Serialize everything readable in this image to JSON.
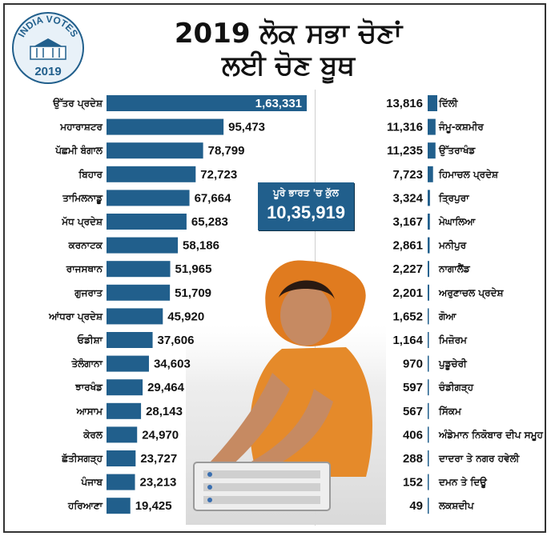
{
  "header": {
    "logo_text_top": "INDIA VOTES",
    "logo_year": "2019",
    "title_line1": "2019 ਲੋਕ ਸਭਾ ਚੋਣਾਂ",
    "title_line2": "ਲਈ ਚੋਣ ਬੂਥ"
  },
  "total": {
    "label": "ਪੂਰੇ ਭਾਰਤ 'ਚ ਕੁੱਲ",
    "value": "10,35,919"
  },
  "colors": {
    "bar": "#215f8c",
    "bar_dark": "#1a4a6e"
  },
  "chart_data": [
    {
      "type": "bar",
      "orientation": "horizontal",
      "categories": [
        "ਉੱਤਰ ਪ੍ਰਦੇਸ਼",
        "ਮਹਾਰਾਸ਼ਟਰ",
        "ਪੱਛਮੀ ਬੰਗਾਲ",
        "ਬਿਹਾਰ",
        "ਤਾਮਿਲਨਾਡੂ",
        "ਮੱਧ ਪ੍ਰਦੇਸ਼",
        "ਕਰਨਾਟਕ",
        "ਰਾਜਸਥਾਨ",
        "ਗੁਜਰਾਤ",
        "ਆਂਧਰਾ ਪ੍ਰਦੇਸ਼",
        "ਓਡੀਸ਼ਾ",
        "ਤੇਲੰਗਾਨਾ",
        "ਝਾਰਖੰਡ",
        "ਆਸਾਮ",
        "ਕੇਰਲ",
        "ਛੱਤੀਸਗੜ੍ਹ",
        "ਪੰਜਾਬ",
        "ਹਰਿਆਣਾ"
      ],
      "values": [
        163331,
        95473,
        78799,
        72723,
        67664,
        65283,
        58186,
        51965,
        51709,
        45920,
        37606,
        34603,
        29464,
        28143,
        24970,
        23727,
        23213,
        19425
      ],
      "value_labels": [
        "1,63,331",
        "95,473",
        "78,799",
        "72,723",
        "67,664",
        "65,283",
        "58,186",
        "51,965",
        "51,709",
        "45,920",
        "37,606",
        "34,603",
        "29,464",
        "28,143",
        "24,970",
        "23,727",
        "23,213",
        "19,425"
      ],
      "xlim": [
        0,
        163331
      ]
    },
    {
      "type": "bar",
      "orientation": "horizontal",
      "categories": [
        "ਦਿੱਲੀ",
        "ਜੰਮੂ-ਕਸ਼ਮੀਰ",
        "ਉੱਤਰਾਖੰਡ",
        "ਹਿਮਾਚਲ ਪ੍ਰਦੇਸ਼",
        "ਤ੍ਰਿਪੁਰਾ",
        "ਮੇਘਾਲਿਆ",
        "ਮਨੀਪੁਰ",
        "ਨਾਗਾਲੈਂਡ",
        "ਅਰੁਣਾਚਲ ਪ੍ਰਦੇਸ਼",
        "ਗੋਆ",
        "ਮਿਜ਼ੋਰਮ",
        "ਪੁਡੂਚੇਰੀ",
        "ਚੰਡੀਗੜ੍ਹ",
        "ਸਿੱਕਮ",
        "ਅੰਡੇਮਾਨ ਨਿਕੋਬਾਰ ਦੀਪ ਸਮੂਹ",
        "ਦਾਦਰਾ ਤੇ ਨਗਰ ਹਵੇਲੀ",
        "ਦਮਨ ਤੇ ਦਿਊ",
        "ਲਕਸ਼ਦੀਪ"
      ],
      "values": [
        13816,
        11316,
        11235,
        7723,
        3324,
        3167,
        2861,
        2227,
        2201,
        1652,
        1164,
        970,
        597,
        567,
        406,
        288,
        152,
        49
      ],
      "value_labels": [
        "13,816",
        "11,316",
        "11,235",
        "7,723",
        "3,324",
        "3,167",
        "2,861",
        "2,227",
        "2,201",
        "1,652",
        "1,164",
        "970",
        "597",
        "567",
        "406",
        "288",
        "152",
        "49"
      ],
      "xlim": [
        0,
        13816
      ]
    }
  ]
}
